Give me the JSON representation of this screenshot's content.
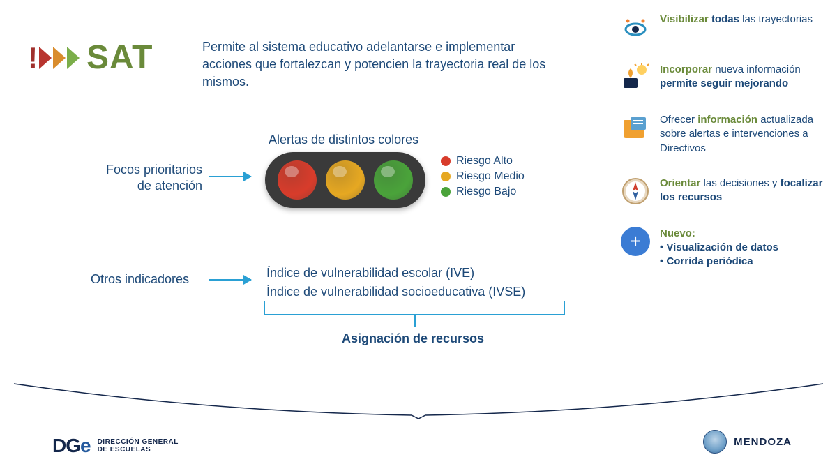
{
  "logo": {
    "text": "SAT",
    "color": "#6a8a3a"
  },
  "intro": "Permite al sistema educativo adelantarse e implementar acciones que fortalezcan y potencien la trayectoria real de los mismos.",
  "alerts": {
    "title": "Alertas de distintos colores",
    "focos_line1": "Focos prioritarios",
    "focos_line2": "de atención",
    "lights": [
      {
        "color": "#d83c2b",
        "label": "Riesgo Alto",
        "dot": "#d83c2b"
      },
      {
        "color": "#e6a822",
        "label": "Riesgo Medio",
        "dot": "#e6a822"
      },
      {
        "color": "#4aa33a",
        "label": "Riesgo Bajo",
        "dot": "#4aa33a"
      }
    ]
  },
  "otros": {
    "label": "Otros indicadores",
    "ive": "Índice de vulnerabilidad escolar (IVE)",
    "ivse": "Índice de vulnerabilidad socioeducativa (IVSE)",
    "asignacion": "Asignación de recursos"
  },
  "features": [
    {
      "icon": "eye",
      "parts": [
        {
          "t": "Visibilizar ",
          "cls": "green-bold"
        },
        {
          "t": "todas",
          "cls": "bold"
        },
        {
          "t": " las trayectorias",
          "cls": ""
        }
      ]
    },
    {
      "icon": "idea",
      "parts": [
        {
          "t": "Incorporar ",
          "cls": "green-bold"
        },
        {
          "t": "nueva información ",
          "cls": ""
        },
        {
          "t": "permite seguir mejorando",
          "cls": "bold"
        }
      ]
    },
    {
      "icon": "folder",
      "parts": [
        {
          "t": "Ofrecer ",
          "cls": ""
        },
        {
          "t": "información",
          "cls": "green-bold"
        },
        {
          "t": " actualizada sobre alertas e intervenciones a Directivos",
          "cls": ""
        }
      ]
    },
    {
      "icon": "compass",
      "parts": [
        {
          "t": "Orientar",
          "cls": "green-bold"
        },
        {
          "t": " las decisiones y ",
          "cls": ""
        },
        {
          "t": "focalizar los recursos",
          "cls": "bold"
        }
      ]
    },
    {
      "icon": "plus",
      "parts": [
        {
          "t": "Nuevo:",
          "cls": "green-bold"
        },
        {
          "t": "\n• Visualización de datos\n• Corrida periódica",
          "cls": "bold"
        }
      ]
    }
  ],
  "footer": {
    "dge": "DG",
    "dge_e": "e",
    "dge_sub1": "DIRECCIÓN GENERAL",
    "dge_sub2": "DE ESCUELAS",
    "mendoza": "MENDOZA"
  },
  "colors": {
    "primary_text": "#1d4978",
    "accent_green": "#6a8a3a",
    "arrow": "#2aa0d4",
    "traffic_body": "#3a3a3a"
  }
}
